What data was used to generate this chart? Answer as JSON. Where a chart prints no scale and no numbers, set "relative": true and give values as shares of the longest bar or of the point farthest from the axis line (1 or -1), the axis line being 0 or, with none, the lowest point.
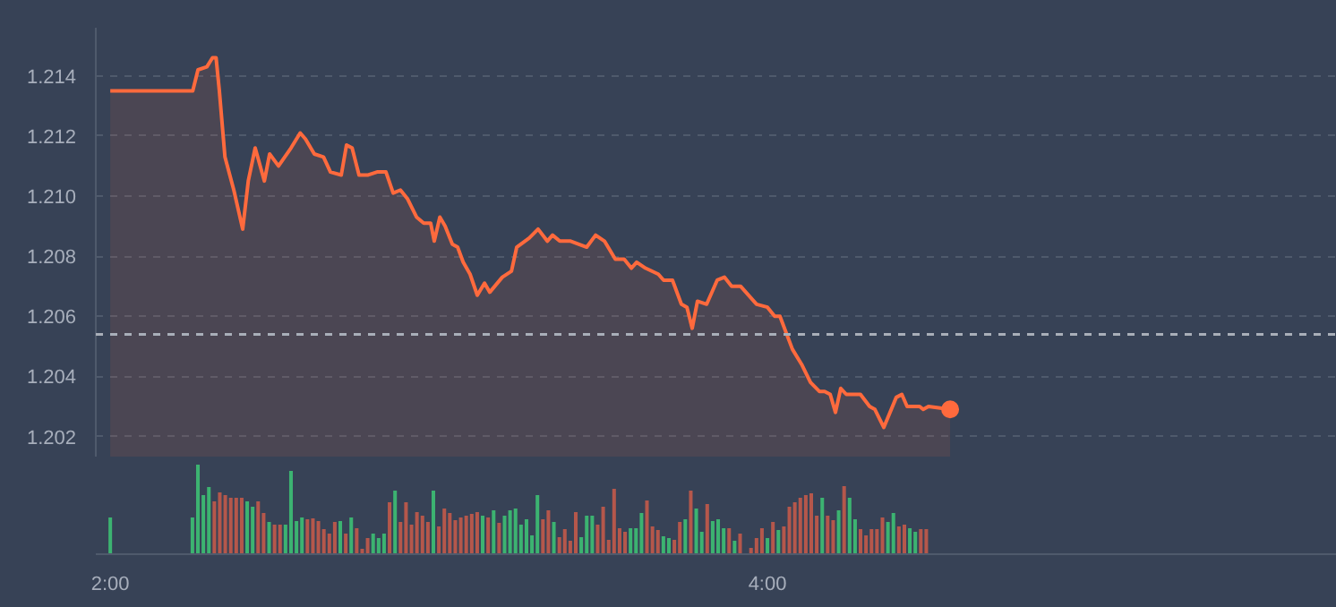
{
  "chart_data": [
    {
      "type": "area",
      "x": [
        2.0,
        2.251,
        2.267,
        2.294,
        2.311,
        2.322,
        2.332,
        2.349,
        2.376,
        2.403,
        2.42,
        2.441,
        2.469,
        2.485,
        2.512,
        2.55,
        2.578,
        2.594,
        2.621,
        2.649,
        2.67,
        2.703,
        2.719,
        2.736,
        2.757,
        2.785,
        2.812,
        2.839,
        2.861,
        2.883,
        2.905,
        2.932,
        2.954,
        2.975,
        2.986,
        3.003,
        3.019,
        3.041,
        3.057,
        3.074,
        3.095,
        3.117,
        3.139,
        3.155,
        3.193,
        3.221,
        3.237,
        3.275,
        3.302,
        3.33,
        3.346,
        3.368,
        3.401,
        3.45,
        3.477,
        3.504,
        3.537,
        3.564,
        3.586,
        3.602,
        3.629,
        3.668,
        3.684,
        3.711,
        3.738,
        3.755,
        3.771,
        3.787,
        3.815,
        3.847,
        3.869,
        3.891,
        3.918,
        3.967,
        4.0,
        4.022,
        4.038,
        4.076,
        4.104,
        4.131,
        4.158,
        4.174,
        4.191,
        4.207,
        4.223,
        4.24,
        4.283,
        4.311,
        4.327,
        4.354,
        4.392,
        4.409,
        4.425,
        4.463,
        4.474,
        4.49,
        4.556
      ],
      "series": [
        {
          "color": "#ff6a3d",
          "values": [
            1.2135,
            1.2135,
            1.2142,
            1.2143,
            1.2146,
            1.2146,
            1.2135,
            1.2113,
            1.2102,
            1.2089,
            1.2105,
            1.2116,
            1.2105,
            1.2114,
            1.211,
            1.2116,
            1.2121,
            1.2119,
            1.2114,
            1.2113,
            1.2108,
            1.2107,
            1.2117,
            1.2116,
            1.2107,
            1.2107,
            1.2108,
            1.2108,
            1.2101,
            1.2102,
            1.2099,
            1.2093,
            1.2091,
            1.2091,
            1.2085,
            1.2093,
            1.209,
            1.2084,
            1.2083,
            1.2078,
            1.2074,
            1.2067,
            1.2071,
            1.2068,
            1.2073,
            1.2075,
            1.2083,
            1.2086,
            1.2089,
            1.2085,
            1.2087,
            1.2085,
            1.2085,
            1.2083,
            1.2087,
            1.2085,
            1.2079,
            1.2079,
            1.2076,
            1.2078,
            1.2076,
            1.2074,
            1.2072,
            1.2072,
            1.2064,
            1.2063,
            1.2056,
            1.2065,
            1.2064,
            1.2072,
            1.2073,
            1.207,
            1.207,
            1.2064,
            1.2063,
            1.206,
            1.206,
            1.2049,
            1.2044,
            1.2038,
            1.2035,
            1.2035,
            1.2034,
            1.2028,
            1.2036,
            1.2034,
            1.2034,
            1.203,
            1.2029,
            1.2023,
            1.2033,
            1.2034,
            1.203,
            1.203,
            1.2029,
            1.203,
            1.2029
          ]
        },
        {
          "type": "scatter",
          "x": [
            4.556
          ],
          "color": "#ff6a3d",
          "marker": "circle",
          "values": [
            1.2029
          ]
        }
      ],
      "xlim": [
        1.956,
        5.733
      ],
      "ylim": [
        1.2013,
        1.2156
      ],
      "yticks": [
        1.202,
        1.204,
        1.206,
        1.208,
        {
          "value": 1.21,
          "label": "1.210"
        },
        1.212,
        1.214
      ],
      "grid": "y",
      "tick_labels": "y",
      "ref_lines": [
        {
          "axis": "y",
          "value": 1.2054,
          "color": "#a9afb9",
          "line_style": "dashed"
        }
      ]
    },
    {
      "type": "bar",
      "relative": true,
      "xlim": [
        1.956,
        5.733
      ],
      "xticks": [
        {
          "value": 2,
          "label": "2:00"
        },
        {
          "value": 4,
          "label": "4:00"
        }
      ],
      "tick_labels": "x",
      "x": [
        2,
        2.25,
        2.2667,
        2.2833,
        2.3,
        2.3167,
        2.3333,
        2.35,
        2.3667,
        2.3833,
        2.4,
        2.4167,
        2.4333,
        2.45,
        2.4667,
        2.4833,
        2.5,
        2.5167,
        2.5333,
        2.55,
        2.5667,
        2.5833,
        2.6,
        2.6167,
        2.6333,
        2.65,
        2.6667,
        2.6833,
        2.7,
        2.7167,
        2.7333,
        2.75,
        2.7667,
        2.7833,
        2.8,
        2.8167,
        2.8333,
        2.85,
        2.8667,
        2.8833,
        2.9,
        2.9167,
        2.9333,
        2.95,
        2.9667,
        2.9833,
        3,
        3.0167,
        3.0333,
        3.05,
        3.0667,
        3.0833,
        3.1,
        3.1167,
        3.1333,
        3.15,
        3.1667,
        3.1833,
        3.2,
        3.2167,
        3.2333,
        3.25,
        3.2667,
        3.2833,
        3.3,
        3.3167,
        3.3333,
        3.35,
        3.3667,
        3.3833,
        3.4,
        3.4167,
        3.4333,
        3.45,
        3.4667,
        3.4833,
        3.5,
        3.5167,
        3.5333,
        3.55,
        3.5667,
        3.5833,
        3.6,
        3.6167,
        3.6333,
        3.65,
        3.6667,
        3.6833,
        3.7,
        3.7167,
        3.7333,
        3.75,
        3.7667,
        3.7833,
        3.8,
        3.8167,
        3.8333,
        3.85,
        3.8667,
        3.8833,
        3.9,
        3.9167,
        3.95,
        3.9667,
        3.9833,
        4,
        4.0167,
        4.0333,
        4.05,
        4.0667,
        4.0833,
        4.1,
        4.1167,
        4.1333,
        4.15,
        4.1667,
        4.1833,
        4.2,
        4.2167,
        4.2333,
        4.25,
        4.2667,
        4.2833,
        4.3,
        4.3167,
        4.3333,
        4.35,
        4.3667,
        4.3833,
        4.4,
        4.4167,
        4.4333,
        4.45,
        4.4667,
        4.4833
      ],
      "values": [
        0.41,
        0.41,
        1.0,
        0.66,
        0.75,
        0.59,
        0.69,
        0.66,
        0.63,
        0.63,
        0.63,
        0.59,
        0.53,
        0.59,
        0.46,
        0.36,
        0.33,
        0.33,
        0.33,
        0.93,
        0.37,
        0.41,
        0.39,
        0.4,
        0.37,
        0.28,
        0.23,
        0.36,
        0.37,
        0.23,
        0.41,
        0.29,
        0.06,
        0.18,
        0.23,
        0.18,
        0.23,
        0.58,
        0.71,
        0.36,
        0.58,
        0.33,
        0.47,
        0.43,
        0.36,
        0.71,
        0.31,
        0.51,
        0.46,
        0.38,
        0.41,
        0.43,
        0.45,
        0.47,
        0.43,
        0.41,
        0.49,
        0.35,
        0.43,
        0.49,
        0.51,
        0.33,
        0.39,
        0.21,
        0.66,
        0.39,
        0.49,
        0.36,
        0.19,
        0.28,
        0.15,
        0.47,
        0.19,
        0.43,
        0.43,
        0.33,
        0.53,
        0.16,
        0.73,
        0.29,
        0.25,
        0.29,
        0.29,
        0.46,
        0.6,
        0.31,
        0.27,
        0.2,
        0.18,
        0.16,
        0.36,
        0.39,
        0.71,
        0.51,
        0.25,
        0.56,
        0.37,
        0.39,
        0.29,
        0.29,
        0.15,
        0.23,
        0.07,
        0.18,
        0.29,
        0.18,
        0.36,
        0.27,
        0.31,
        0.53,
        0.58,
        0.63,
        0.66,
        0.68,
        0.43,
        0.63,
        0.43,
        0.38,
        0.49,
        0.76,
        0.63,
        0.39,
        0.28,
        0.21,
        0.28,
        0.28,
        0.41,
        0.36,
        0.46,
        0.31,
        0.33,
        0.29,
        0.25,
        0.28,
        0.28
      ],
      "colors": [
        "#3cb371",
        "#3cb371",
        "#3cb371",
        "#3cb371",
        "#3cb371",
        "#b5574b",
        "#b5574b",
        "#b5574b",
        "#b5574b",
        "#b5574b",
        "#b5574b",
        "#3cb371",
        "#3cb371",
        "#b5574b",
        "#b5574b",
        "#3cb371",
        "#b5574b",
        "#b5574b",
        "#3cb371",
        "#3cb371",
        "#3cb371",
        "#3cb371",
        "#b5574b",
        "#b5574b",
        "#b5574b",
        "#b5574b",
        "#b5574b",
        "#b5574b",
        "#3cb371",
        "#b5574b",
        "#3cb371",
        "#b5574b",
        "#b5574b",
        "#b5574b",
        "#3cb371",
        "#3cb371",
        "#3cb371",
        "#b5574b",
        "#3cb371",
        "#b5574b",
        "#b5574b",
        "#b5574b",
        "#b5574b",
        "#b5574b",
        "#b5574b",
        "#3cb371",
        "#b5574b",
        "#b5574b",
        "#b5574b",
        "#b5574b",
        "#b5574b",
        "#b5574b",
        "#b5574b",
        "#b5574b",
        "#3cb371",
        "#b5574b",
        "#3cb371",
        "#b5574b",
        "#3cb371",
        "#3cb371",
        "#3cb371",
        "#3cb371",
        "#3cb371",
        "#3cb371",
        "#3cb371",
        "#b5574b",
        "#b5574b",
        "#3cb371",
        "#b5574b",
        "#b5574b",
        "#b5574b",
        "#b5574b",
        "#3cb371",
        "#3cb371",
        "#3cb371",
        "#b5574b",
        "#b5574b",
        "#b5574b",
        "#b5574b",
        "#b5574b",
        "#b5574b",
        "#3cb371",
        "#3cb371",
        "#3cb371",
        "#b5574b",
        "#b5574b",
        "#b5574b",
        "#3cb371",
        "#3cb371",
        "#b5574b",
        "#b5574b",
        "#3cb371",
        "#b5574b",
        "#3cb371",
        "#3cb371",
        "#b5574b",
        "#3cb371",
        "#3cb371",
        "#3cb371",
        "#b5574b",
        "#3cb371",
        "#b5574b",
        "#b5574b",
        "#b5574b",
        "#b5574b",
        "#3cb371",
        "#b5574b",
        "#3cb371",
        "#b5574b",
        "#b5574b",
        "#b5574b",
        "#b5574b",
        "#b5574b",
        "#b5574b",
        "#b5574b",
        "#3cb371",
        "#b5574b",
        "#b5574b",
        "#3cb371",
        "#b5574b",
        "#3cb371",
        "#3cb371",
        "#b5574b",
        "#b5574b",
        "#b5574b",
        "#b5574b",
        "#b5574b",
        "#3cb371",
        "#3cb371",
        "#b5574b",
        "#b5574b",
        "#3cb371",
        "#3cb371",
        "#b5574b",
        "#b5574b"
      ]
    }
  ]
}
